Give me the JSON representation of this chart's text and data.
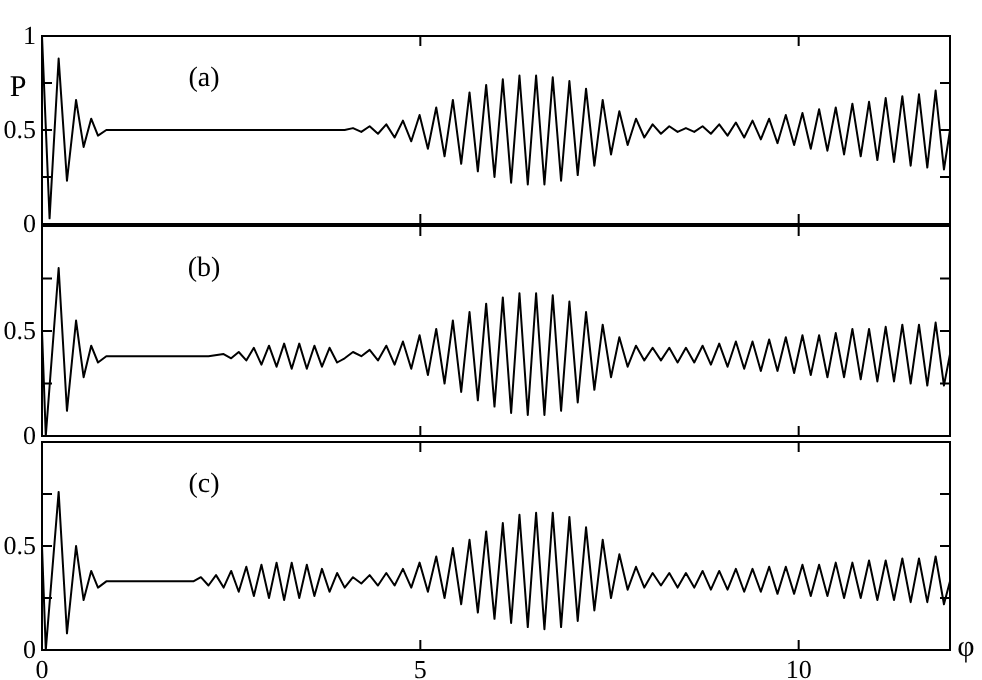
{
  "chart_data": [
    {
      "type": "line",
      "ylabel": "P",
      "annotations": [
        "(a)"
      ],
      "xlim": [
        0,
        12
      ],
      "ylim": [
        0,
        1
      ],
      "xticks": [
        0,
        5,
        10
      ],
      "yticks": [
        0,
        {
          "value": 0.25,
          "label": null
        },
        0.5,
        {
          "value": 0.75,
          "label": null
        },
        1
      ],
      "tick_labels": "y",
      "series": [
        {
          "color": "#000000",
          "x": [
            0,
            0.1,
            0.22,
            0.33,
            0.45,
            0.55,
            0.65,
            0.74,
            0.85,
            4.0,
            4.11,
            4.22,
            4.33,
            4.44,
            4.55,
            4.66,
            4.77,
            4.88,
            4.99,
            5.1,
            5.21,
            5.32,
            5.43,
            5.54,
            5.65,
            5.76,
            5.87,
            5.98,
            6.09,
            6.2,
            6.31,
            6.42,
            6.53,
            6.64,
            6.75,
            6.86,
            6.97,
            7.08,
            7.19,
            7.3,
            7.41,
            7.52,
            7.63,
            7.74,
            7.85,
            7.96,
            8.07,
            8.18,
            8.29,
            8.4,
            8.51,
            8.62,
            8.73,
            8.84,
            8.95,
            9.06,
            9.17,
            9.28,
            9.39,
            9.5,
            9.61,
            9.72,
            9.83,
            9.94,
            10.05,
            10.16,
            10.27,
            10.38,
            10.49,
            10.6,
            10.71,
            10.82,
            10.93,
            11.04,
            11.15,
            11.26,
            11.37,
            11.48,
            11.59,
            11.7,
            11.81,
            11.92,
            12.0
          ],
          "values": [
            1,
            0.03,
            0.88,
            0.23,
            0.66,
            0.41,
            0.56,
            0.47,
            0.5,
            0.5,
            0.51,
            0.49,
            0.52,
            0.48,
            0.53,
            0.46,
            0.55,
            0.44,
            0.58,
            0.4,
            0.62,
            0.36,
            0.66,
            0.32,
            0.7,
            0.28,
            0.74,
            0.25,
            0.77,
            0.22,
            0.79,
            0.21,
            0.79,
            0.21,
            0.78,
            0.23,
            0.76,
            0.26,
            0.72,
            0.31,
            0.66,
            0.37,
            0.6,
            0.42,
            0.56,
            0.46,
            0.53,
            0.48,
            0.52,
            0.49,
            0.51,
            0.49,
            0.52,
            0.48,
            0.53,
            0.47,
            0.54,
            0.46,
            0.55,
            0.45,
            0.56,
            0.43,
            0.58,
            0.42,
            0.59,
            0.4,
            0.61,
            0.39,
            0.62,
            0.37,
            0.64,
            0.36,
            0.65,
            0.34,
            0.67,
            0.33,
            0.68,
            0.31,
            0.69,
            0.3,
            0.71,
            0.29,
            0.5
          ]
        }
      ]
    },
    {
      "type": "line",
      "annotations": [
        "(b)"
      ],
      "xlim": [
        0,
        12
      ],
      "ylim": [
        0,
        1
      ],
      "xticks": [
        0,
        5,
        10
      ],
      "yticks": [
        0,
        {
          "value": 0.25,
          "label": null
        },
        0.5,
        {
          "value": 0.75,
          "label": null
        },
        {
          "value": 1,
          "label": null
        }
      ],
      "tick_labels": "y",
      "series": [
        {
          "color": "#000000",
          "x": [
            0,
            0.05,
            0.22,
            0.33,
            0.45,
            0.55,
            0.65,
            0.74,
            0.85,
            2.2,
            2.4,
            2.5,
            2.6,
            2.7,
            2.8,
            2.9,
            3.0,
            3.1,
            3.2,
            3.3,
            3.4,
            3.5,
            3.6,
            3.7,
            3.8,
            3.9,
            4.0,
            4.11,
            4.22,
            4.33,
            4.44,
            4.55,
            4.66,
            4.77,
            4.88,
            4.99,
            5.1,
            5.21,
            5.32,
            5.43,
            5.54,
            5.65,
            5.76,
            5.87,
            5.98,
            6.09,
            6.2,
            6.31,
            6.42,
            6.53,
            6.64,
            6.75,
            6.86,
            6.97,
            7.08,
            7.19,
            7.3,
            7.41,
            7.52,
            7.63,
            7.74,
            7.85,
            7.96,
            8.07,
            8.18,
            8.29,
            8.4,
            8.51,
            8.62,
            8.73,
            8.84,
            8.95,
            9.06,
            9.17,
            9.28,
            9.39,
            9.5,
            9.61,
            9.72,
            9.83,
            9.94,
            10.05,
            10.16,
            10.27,
            10.38,
            10.49,
            10.6,
            10.71,
            10.82,
            10.93,
            11.04,
            11.15,
            11.26,
            11.37,
            11.48,
            11.59,
            11.7,
            11.81,
            11.92,
            12.0
          ],
          "values": [
            0.5,
            0.0,
            0.8,
            0.12,
            0.55,
            0.28,
            0.43,
            0.35,
            0.38,
            0.38,
            0.39,
            0.37,
            0.4,
            0.36,
            0.42,
            0.34,
            0.43,
            0.33,
            0.44,
            0.32,
            0.44,
            0.32,
            0.43,
            0.33,
            0.42,
            0.35,
            0.37,
            0.4,
            0.38,
            0.41,
            0.36,
            0.43,
            0.34,
            0.45,
            0.32,
            0.48,
            0.29,
            0.51,
            0.25,
            0.55,
            0.21,
            0.59,
            0.17,
            0.63,
            0.14,
            0.66,
            0.11,
            0.68,
            0.1,
            0.68,
            0.1,
            0.67,
            0.12,
            0.64,
            0.16,
            0.59,
            0.22,
            0.53,
            0.28,
            0.47,
            0.33,
            0.43,
            0.36,
            0.42,
            0.36,
            0.42,
            0.35,
            0.42,
            0.35,
            0.43,
            0.34,
            0.44,
            0.33,
            0.45,
            0.32,
            0.45,
            0.31,
            0.46,
            0.31,
            0.47,
            0.3,
            0.48,
            0.29,
            0.48,
            0.28,
            0.49,
            0.28,
            0.51,
            0.27,
            0.51,
            0.26,
            0.52,
            0.26,
            0.53,
            0.25,
            0.53,
            0.24,
            0.54,
            0.24,
            0.39
          ]
        }
      ]
    },
    {
      "type": "line",
      "xlabel": "φ",
      "annotations": [
        "(c)"
      ],
      "xlim": [
        0,
        12
      ],
      "ylim": [
        0,
        1
      ],
      "xticks": [
        0,
        5,
        10
      ],
      "yticks": [
        0,
        {
          "value": 0.25,
          "label": null
        },
        0.5,
        {
          "value": 0.75,
          "label": null
        },
        {
          "value": 1,
          "label": null
        }
      ],
      "series": [
        {
          "color": "#000000",
          "x": [
            0,
            0.05,
            0.22,
            0.33,
            0.45,
            0.55,
            0.65,
            0.74,
            0.85,
            2.0,
            2.1,
            2.2,
            2.3,
            2.4,
            2.5,
            2.6,
            2.7,
            2.8,
            2.9,
            3.0,
            3.1,
            3.2,
            3.3,
            3.4,
            3.5,
            3.6,
            3.7,
            3.8,
            3.9,
            4.0,
            4.11,
            4.22,
            4.33,
            4.44,
            4.55,
            4.66,
            4.77,
            4.88,
            4.99,
            5.1,
            5.21,
            5.32,
            5.43,
            5.54,
            5.65,
            5.76,
            5.87,
            5.98,
            6.09,
            6.2,
            6.31,
            6.42,
            6.53,
            6.64,
            6.75,
            6.86,
            6.97,
            7.08,
            7.19,
            7.3,
            7.41,
            7.52,
            7.63,
            7.74,
            7.85,
            7.96,
            8.07,
            8.18,
            8.29,
            8.4,
            8.51,
            8.62,
            8.73,
            8.84,
            8.95,
            9.06,
            9.17,
            9.28,
            9.39,
            9.5,
            9.61,
            9.72,
            9.83,
            9.94,
            10.05,
            10.16,
            10.27,
            10.38,
            10.49,
            10.6,
            10.71,
            10.82,
            10.93,
            11.04,
            11.15,
            11.26,
            11.37,
            11.48,
            11.59,
            11.7,
            11.81,
            11.92,
            12.0
          ],
          "values": [
            0.5,
            0.0,
            0.76,
            0.08,
            0.5,
            0.24,
            0.38,
            0.3,
            0.33,
            0.33,
            0.35,
            0.31,
            0.36,
            0.3,
            0.38,
            0.28,
            0.4,
            0.26,
            0.41,
            0.25,
            0.42,
            0.24,
            0.42,
            0.25,
            0.41,
            0.26,
            0.39,
            0.28,
            0.37,
            0.3,
            0.35,
            0.32,
            0.36,
            0.31,
            0.37,
            0.31,
            0.39,
            0.3,
            0.42,
            0.28,
            0.45,
            0.25,
            0.49,
            0.22,
            0.53,
            0.18,
            0.57,
            0.15,
            0.61,
            0.13,
            0.65,
            0.11,
            0.66,
            0.1,
            0.66,
            0.11,
            0.64,
            0.14,
            0.59,
            0.19,
            0.53,
            0.25,
            0.46,
            0.29,
            0.4,
            0.3,
            0.37,
            0.31,
            0.37,
            0.3,
            0.37,
            0.3,
            0.38,
            0.29,
            0.38,
            0.29,
            0.39,
            0.28,
            0.39,
            0.28,
            0.4,
            0.27,
            0.4,
            0.27,
            0.41,
            0.26,
            0.41,
            0.26,
            0.42,
            0.25,
            0.42,
            0.25,
            0.43,
            0.24,
            0.43,
            0.24,
            0.44,
            0.23,
            0.44,
            0.23,
            0.45,
            0.22,
            0.33
          ]
        }
      ]
    }
  ]
}
